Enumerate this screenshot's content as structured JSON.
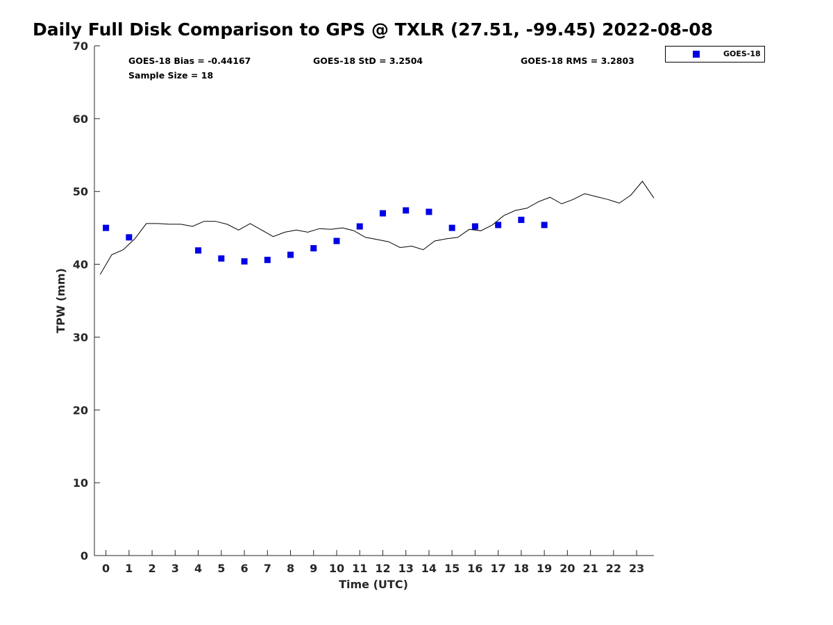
{
  "chart_data": {
    "type": "scatter",
    "title": "Daily Full Disk Comparison to GPS @ TXLR (27.51, -99.45) 2022-08-08",
    "xlabel": "Time (UTC)",
    "ylabel": "TPW (mm)",
    "xlim": [
      -0.5,
      23.75
    ],
    "ylim": [
      0,
      70
    ],
    "x_ticks": [
      0,
      1,
      2,
      3,
      4,
      5,
      6,
      7,
      8,
      9,
      10,
      11,
      12,
      13,
      14,
      15,
      16,
      17,
      18,
      19,
      20,
      21,
      22,
      23
    ],
    "y_ticks": [
      0,
      10,
      20,
      30,
      40,
      50,
      60,
      70
    ],
    "grid": false,
    "legend": {
      "position": "top-right",
      "entries": [
        "GOES-18"
      ]
    },
    "stats": {
      "bias": "GOES-18 Bias = -0.44167",
      "std": "GOES-18 StD = 3.2504",
      "rms": "GOES-18 RMS = 3.2803",
      "sample_size": "Sample Size = 18"
    },
    "series": [
      {
        "name": "GOES-18",
        "kind": "scatter",
        "marker": "square",
        "color": "#0000e6",
        "x": [
          0,
          1,
          4,
          5,
          6,
          7,
          8,
          9,
          10,
          11,
          12,
          13,
          14,
          15,
          16,
          17,
          18,
          19
        ],
        "y": [
          45.0,
          43.7,
          41.9,
          40.8,
          40.4,
          40.6,
          41.3,
          42.2,
          43.2,
          45.2,
          47.0,
          47.4,
          47.2,
          45.0,
          45.2,
          45.4,
          46.1,
          45.4
        ]
      },
      {
        "kind": "line",
        "color": "#000000",
        "x": [
          -0.25,
          0.25,
          0.75,
          1.25,
          1.75,
          2.25,
          2.75,
          3.25,
          3.75,
          4.25,
          4.75,
          5.25,
          5.75,
          6.25,
          6.75,
          7.25,
          7.75,
          8.25,
          8.75,
          9.25,
          9.75,
          10.25,
          10.75,
          11.25,
          11.75,
          12.25,
          12.75,
          13.25,
          13.75,
          14.25,
          14.75,
          15.25,
          15.75,
          16.25,
          16.75,
          17.25,
          17.75,
          18.25,
          18.75,
          19.25,
          19.75,
          20.25,
          20.75,
          21.25,
          21.75,
          22.25,
          22.75,
          23.25,
          23.75
        ],
        "y": [
          38.6,
          41.3,
          42.0,
          43.5,
          45.6,
          45.6,
          45.5,
          45.5,
          45.2,
          45.9,
          45.9,
          45.5,
          44.7,
          45.6,
          44.7,
          43.8,
          44.4,
          44.7,
          44.4,
          44.9,
          44.8,
          45.0,
          44.6,
          43.7,
          43.4,
          43.1,
          42.3,
          42.5,
          42.0,
          43.2,
          43.5,
          43.7,
          44.8,
          44.6,
          45.4,
          46.7,
          47.4,
          47.7,
          48.6,
          49.2,
          48.3,
          48.9,
          49.7,
          49.3,
          48.9,
          48.4,
          49.5,
          51.4,
          49.1
        ]
      }
    ]
  }
}
